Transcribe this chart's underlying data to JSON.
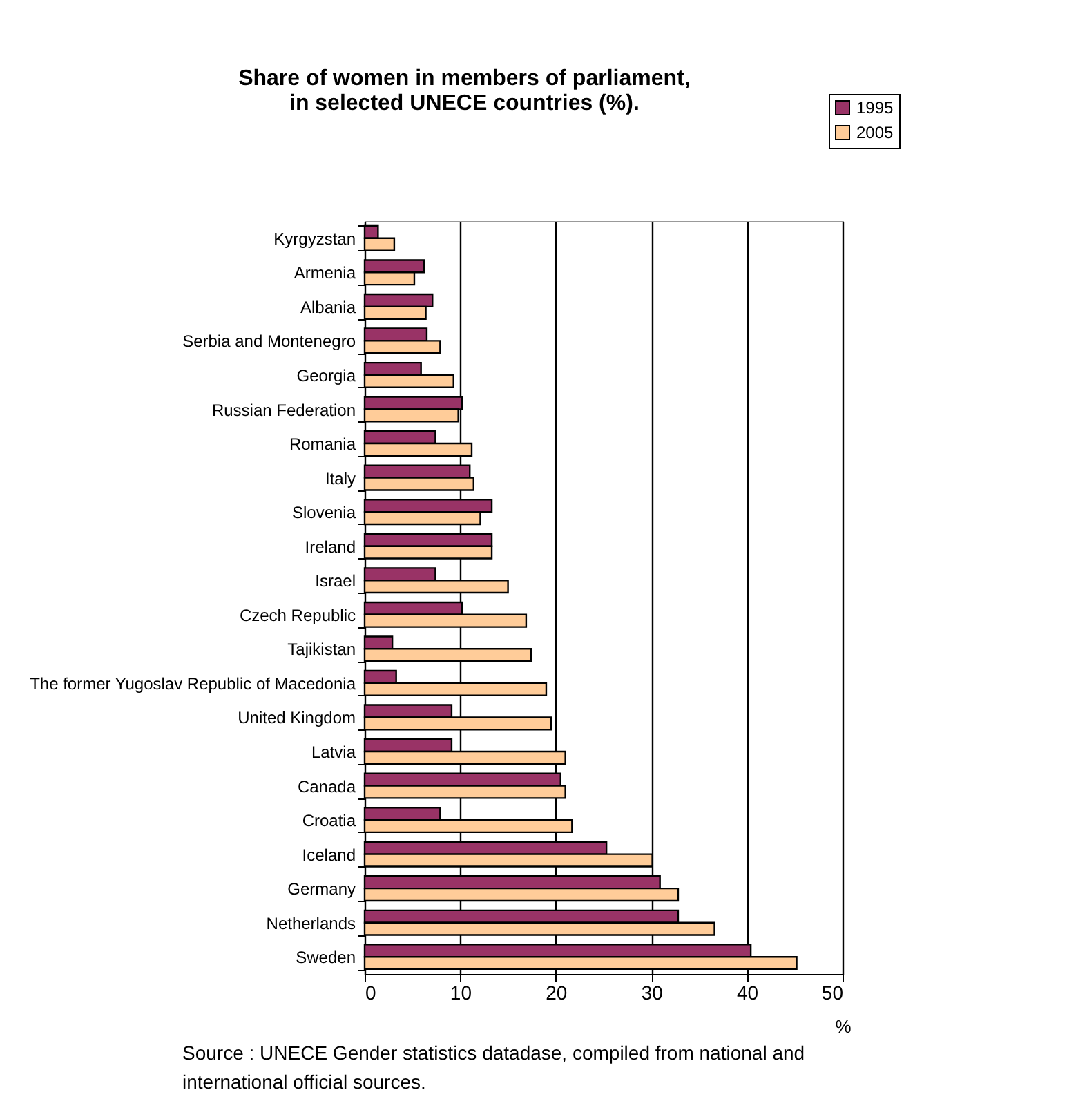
{
  "chart_data": {
    "type": "bar",
    "orientation": "horizontal",
    "title": [
      "Share of women in members of parliament,",
      "in selected UNECE countries (%)."
    ],
    "xlabel": "%",
    "categories": [
      "Kyrgyzstan",
      "Armenia",
      "Albania",
      "Serbia and Montenegro",
      "Georgia",
      "Russian Federation",
      "Romania",
      "Italy",
      "Slovenia",
      "Ireland",
      "Israel",
      "Czech Republic",
      "Tajikistan",
      "The former Yugoslav Republic of Macedonia",
      "United Kingdom",
      "Latvia",
      "Canada",
      "Croatia",
      "Iceland",
      "Germany",
      "Netherlands",
      "Sweden"
    ],
    "series": [
      {
        "name": "1995",
        "color": "#993366",
        "values": [
          1.4,
          6.2,
          7.1,
          6.5,
          5.9,
          10.2,
          7.4,
          11.0,
          13.3,
          13.3,
          7.4,
          10.2,
          2.9,
          3.3,
          9.1,
          9.1,
          20.5,
          7.9,
          25.3,
          30.9,
          32.8,
          40.4
        ]
      },
      {
        "name": "2005",
        "color": "#ffcc99",
        "values": [
          3.1,
          5.2,
          6.4,
          7.9,
          9.3,
          9.8,
          11.2,
          11.4,
          12.1,
          13.3,
          15.0,
          16.9,
          17.4,
          19.0,
          19.5,
          21.0,
          21.0,
          21.7,
          30.1,
          32.8,
          36.6,
          45.2
        ]
      }
    ],
    "xlim": [
      0,
      50
    ],
    "xticks": [
      0,
      10,
      20,
      30,
      40,
      50
    ],
    "grid": "x",
    "legend": "top right",
    "annotations": [
      "Source : UNECE Gender statistics datadase, compiled from national and international official sources."
    ]
  }
}
